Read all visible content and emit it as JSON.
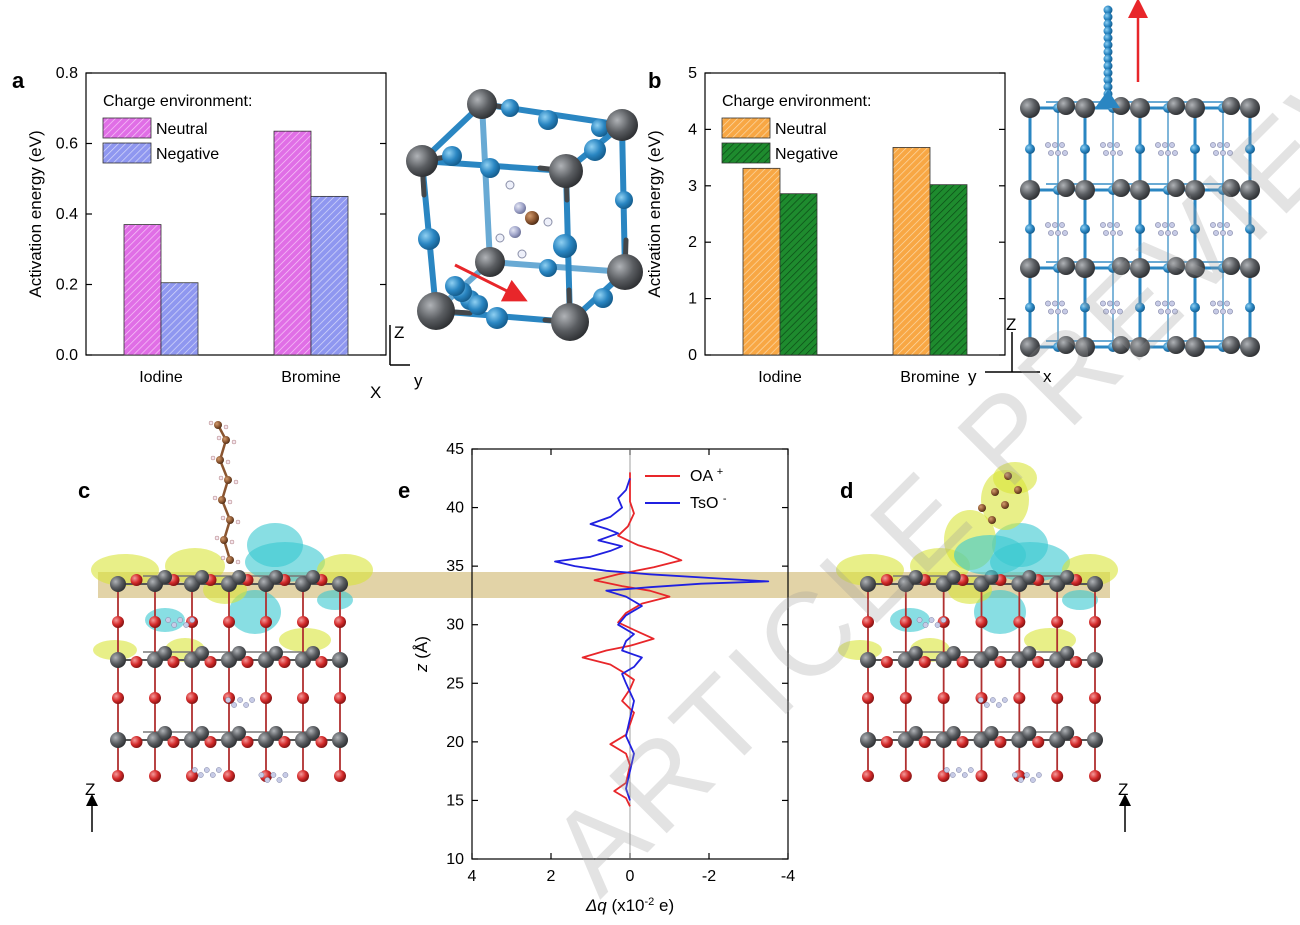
{
  "panels": {
    "a": "a",
    "b": "b",
    "c": "c",
    "d": "d",
    "e": "e"
  },
  "colors": {
    "neutral_a": "#e06ee6",
    "negative_a": "#8f97f0",
    "neutral_b": "#f8a744",
    "negative_b": "#1e8b2e",
    "pb": "#55585c",
    "halide": "#2a86c2",
    "oxygen": "#d42b2b",
    "band": "#d8c48a",
    "cyan_iso": "#38c8d0",
    "yellow_iso": "#d8e438",
    "oa_line": "#e8262a",
    "tso_line": "#2020e0"
  },
  "axes_labels": {
    "axes_a": {
      "z": "Z",
      "x": "X",
      "y": "y"
    },
    "axes_b": {
      "z": "Z",
      "y": "y",
      "x": "x"
    },
    "axes_c": {
      "z": "Z"
    },
    "axes_d": {
      "z": "Z"
    }
  },
  "watermark": "ARTICLE PREVIEW",
  "chart_data": [
    {
      "id": "a",
      "type": "bar",
      "ylabel": "Activation energy (eV)",
      "xlabel": "",
      "ylim": [
        0,
        0.8
      ],
      "yticks": [
        "0.0",
        "0.2",
        "0.4",
        "0.6",
        "0.8"
      ],
      "categories": [
        "Iodine",
        "Bromine"
      ],
      "legend_title": "Charge environment:",
      "series": [
        {
          "name": "Neutral",
          "values": [
            0.37,
            0.635
          ]
        },
        {
          "name": "Negative",
          "values": [
            0.205,
            0.45
          ]
        }
      ]
    },
    {
      "id": "b",
      "type": "bar",
      "ylabel": "Activation energy (eV)",
      "xlabel": "",
      "ylim": [
        0,
        5
      ],
      "yticks": [
        "0",
        "1",
        "2",
        "3",
        "4",
        "5"
      ],
      "categories": [
        "Iodine",
        "Bromine"
      ],
      "legend_title": "Charge environment:",
      "series": [
        {
          "name": "Neutral",
          "values": [
            3.31,
            3.68
          ]
        },
        {
          "name": "Negative",
          "values": [
            2.86,
            3.02
          ]
        }
      ]
    },
    {
      "id": "e",
      "type": "line",
      "xlabel_main": "Δq",
      "xlabel_unit": " (x10",
      "xlabel_exp": "-2",
      "xlabel_tail": " e)",
      "ylabel_main": "z",
      "ylabel_unit": " (Å)",
      "xlim": [
        4,
        -4
      ],
      "ylim": [
        10,
        45
      ],
      "xticks": [
        "4",
        "2",
        "0",
        "-2",
        "-4"
      ],
      "yticks": [
        "10",
        "15",
        "20",
        "25",
        "30",
        "35",
        "40",
        "45"
      ],
      "series": [
        {
          "name": "OA",
          "sup": "+",
          "points": [
            [
              0,
              14.5
            ],
            [
              0.1,
              15.2
            ],
            [
              0.4,
              15.8
            ],
            [
              0.1,
              16.5
            ],
            [
              0,
              18
            ],
            [
              0.1,
              19
            ],
            [
              0.5,
              19.8
            ],
            [
              0.1,
              20.6
            ],
            [
              0,
              21.5
            ],
            [
              -0.1,
              22.5
            ],
            [
              0.2,
              23.5
            ],
            [
              0,
              24.5
            ],
            [
              -0.1,
              25.3
            ],
            [
              0.2,
              26
            ],
            [
              0.5,
              26.6
            ],
            [
              1.2,
              27.2
            ],
            [
              0.6,
              27.8
            ],
            [
              0,
              28.2
            ],
            [
              -0.6,
              28.8
            ],
            [
              -0.2,
              29.4
            ],
            [
              0.3,
              30.2
            ],
            [
              0.1,
              31
            ],
            [
              -0.3,
              31.8
            ],
            [
              -1.0,
              32.4
            ],
            [
              -0.5,
              32.9
            ],
            [
              0.2,
              33.3
            ],
            [
              0.9,
              33.8
            ],
            [
              0.3,
              34.3
            ],
            [
              -0.6,
              34.9
            ],
            [
              -1.3,
              35.5
            ],
            [
              -0.8,
              36.2
            ],
            [
              -0.2,
              36.8
            ],
            [
              0.3,
              37.6
            ],
            [
              0.05,
              38.4
            ],
            [
              -0.1,
              39.5
            ],
            [
              0,
              40.5
            ],
            [
              0,
              42
            ],
            [
              0,
              43
            ]
          ]
        },
        {
          "name": "TsO",
          "sup": "-",
          "points": [
            [
              0,
              15
            ],
            [
              0.1,
              16
            ],
            [
              0,
              17.5
            ],
            [
              -0.1,
              19
            ],
            [
              0.1,
              20.5
            ],
            [
              0,
              22
            ],
            [
              -0.1,
              23.5
            ],
            [
              0.1,
              25
            ],
            [
              0.2,
              25.8
            ],
            [
              -0.1,
              26.4
            ],
            [
              -0.3,
              27.2
            ],
            [
              0.2,
              27.8
            ],
            [
              0.1,
              28.6
            ],
            [
              -0.1,
              29.2
            ],
            [
              0.3,
              30
            ],
            [
              0.1,
              30.8
            ],
            [
              -0.3,
              31.6
            ],
            [
              0.1,
              32.4
            ],
            [
              0.6,
              32.9
            ],
            [
              -0.5,
              33.2
            ],
            [
              -1.8,
              33.5
            ],
            [
              -3.5,
              33.7
            ],
            [
              -2.2,
              33.95
            ],
            [
              -0.5,
              34.3
            ],
            [
              0.6,
              34.6
            ],
            [
              1.4,
              35.0
            ],
            [
              1.9,
              35.4
            ],
            [
              1.0,
              35.8
            ],
            [
              0.5,
              36.3
            ],
            [
              0.2,
              36.7
            ],
            [
              0.8,
              37.2
            ],
            [
              0.3,
              37.8
            ],
            [
              0.6,
              38.2
            ],
            [
              1.0,
              38.6
            ],
            [
              0.5,
              39.2
            ],
            [
              0.2,
              40
            ],
            [
              0.3,
              40.8
            ],
            [
              0.1,
              41.5
            ],
            [
              0,
              42.5
            ]
          ]
        }
      ]
    }
  ]
}
